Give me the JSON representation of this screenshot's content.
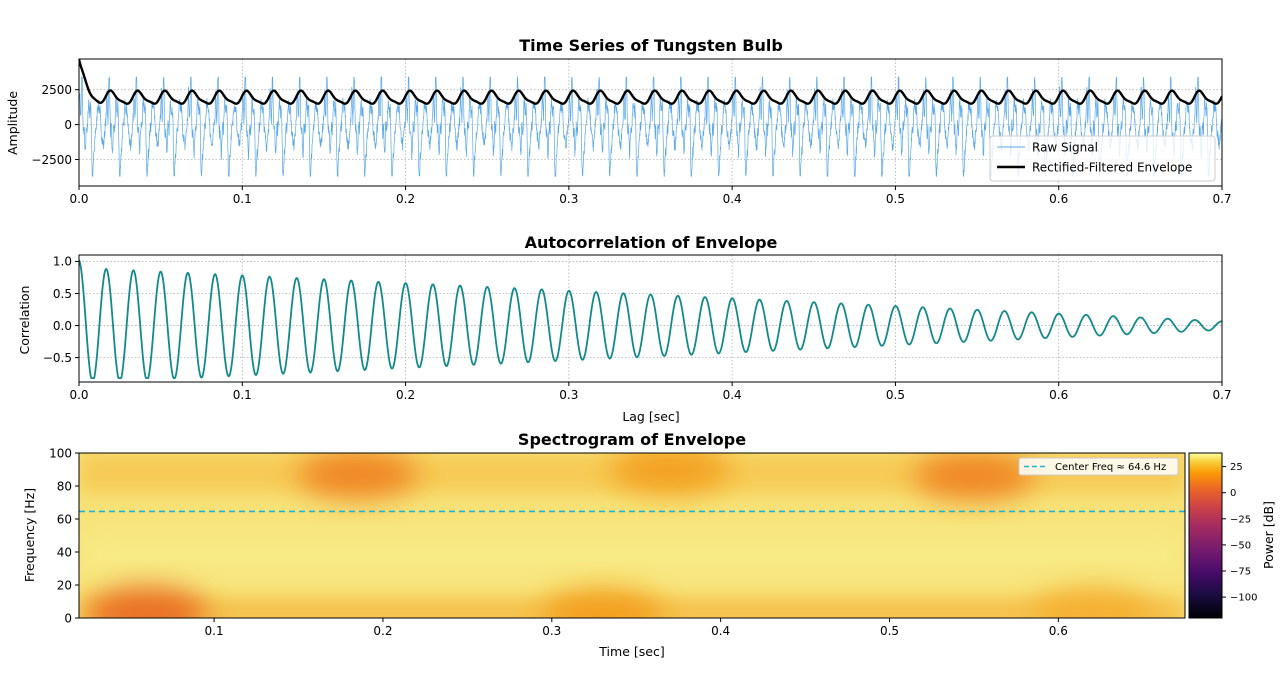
{
  "chart_data": [
    {
      "type": "line",
      "title": "Time Series of Tungsten Bulb",
      "xlabel": "",
      "ylabel": "Amplitude",
      "xlim": [
        0,
        0.7
      ],
      "ylim": [
        -4400,
        4700
      ],
      "xticks": [
        "0.0",
        "0.1",
        "0.2",
        "0.3",
        "0.4",
        "0.5",
        "0.6",
        "0.7"
      ],
      "yticks": [
        "2500",
        "0",
        "−2500"
      ],
      "grid": true,
      "legend_position": "lower-right",
      "series": [
        {
          "name": "Raw Signal",
          "color": "#5aa8ea",
          "pulse_period_sec": 0.01667,
          "min": -3700,
          "max": 3400
        },
        {
          "name": "Rectified-Filtered Envelope",
          "color": "#000000",
          "start_value": 4500,
          "mean": 1900,
          "amplitude": 430,
          "period_sec": 0.01667
        }
      ]
    },
    {
      "type": "line",
      "title": "Autocorrelation of Envelope",
      "xlabel": "Lag [sec]",
      "ylabel": "Correlation",
      "xlim": [
        0,
        0.7
      ],
      "ylim": [
        -0.88,
        1.1
      ],
      "xticks": [
        "0.0",
        "0.1",
        "0.2",
        "0.3",
        "0.4",
        "0.5",
        "0.6",
        "0.7"
      ],
      "yticks": [
        "1.0",
        "0.5",
        "0.0",
        "−0.5"
      ],
      "grid": true,
      "series": [
        {
          "name": "Autocorrelation",
          "color": "#138a8a",
          "period_sec": 0.01667,
          "start": 1.0,
          "first_min": -0.8,
          "end_amplitude": 0.03
        }
      ]
    },
    {
      "type": "heatmap",
      "title": "Spectrogram of Envelope",
      "xlabel": "Time [sec]",
      "ylabel": "Frequency [Hz]",
      "xlim": [
        0.02,
        0.675
      ],
      "ylim": [
        0,
        100
      ],
      "xticks": [
        "0.1",
        "0.2",
        "0.3",
        "0.4",
        "0.5",
        "0.6"
      ],
      "yticks": [
        "0",
        "20",
        "40",
        "60",
        "80",
        "100"
      ],
      "colormap": "inferno",
      "colorbar_label": "Power [dB]",
      "colorbar_range": [
        -120,
        38
      ],
      "colorbar_ticks": [
        "25",
        "0",
        "−25",
        "−50",
        "−75",
        "−100"
      ],
      "center_freq_hz": 64.6,
      "legend": "Center Freq ≈ 64.6 Hz",
      "center_line_color": "#1fb3d6",
      "hotspots": [
        {
          "t": 0.06,
          "f": 3,
          "db": -8
        },
        {
          "t": 0.185,
          "f": 87,
          "db": -4
        },
        {
          "t": 0.37,
          "f": 90,
          "db": 4
        },
        {
          "t": 0.55,
          "f": 86,
          "db": -2
        },
        {
          "t": 0.33,
          "f": 2,
          "db": 2
        },
        {
          "t": 0.62,
          "f": 3,
          "db": 6
        }
      ]
    }
  ]
}
